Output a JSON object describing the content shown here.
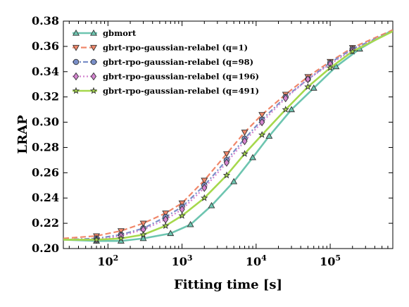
{
  "chart_data": {
    "type": "line",
    "title": "",
    "xlabel": "Fitting time [s]",
    "ylabel": "LRAP",
    "xscale": "log",
    "xlim": [
      25,
      700000
    ],
    "ylim": [
      0.2,
      0.38
    ],
    "yticks": [
      0.2,
      0.22,
      0.24,
      0.26,
      0.28,
      0.3,
      0.32,
      0.34,
      0.36,
      0.38
    ],
    "ytick_labels": [
      "0.20",
      "0.22",
      "0.24",
      "0.26",
      "0.28",
      "0.30",
      "0.32",
      "0.34",
      "0.36",
      "0.38"
    ],
    "xticks": [
      100,
      1000,
      10000,
      100000
    ],
    "xtick_labels": [
      {
        "base": "10",
        "exp": "2"
      },
      {
        "base": "10",
        "exp": "3"
      },
      {
        "base": "10",
        "exp": "4"
      },
      {
        "base": "10",
        "exp": "5"
      }
    ],
    "legend_position": "top-left",
    "grid": false,
    "series": [
      {
        "name": "gbmort",
        "color": "#6dc5b0",
        "dash": "solid",
        "marker": "triangle-up",
        "x": [
          25,
          70,
          150,
          300,
          700,
          1300,
          2500,
          5000,
          9000,
          15000,
          30000,
          60000,
          120000,
          250000,
          700000
        ],
        "y": [
          0.207,
          0.206,
          0.206,
          0.208,
          0.212,
          0.219,
          0.234,
          0.253,
          0.272,
          0.289,
          0.31,
          0.327,
          0.344,
          0.358,
          0.373
        ]
      },
      {
        "name": "gbrt-rpo-gaussian-relabel (q=1)",
        "color": "#f0876a",
        "dash": "dashed",
        "marker": "triangle-down",
        "x": [
          25,
          70,
          150,
          300,
          600,
          1000,
          2000,
          4000,
          7000,
          12000,
          25000,
          50000,
          100000,
          200000,
          700000
        ],
        "y": [
          0.208,
          0.21,
          0.214,
          0.22,
          0.228,
          0.236,
          0.254,
          0.275,
          0.292,
          0.306,
          0.322,
          0.336,
          0.348,
          0.359,
          0.373
        ]
      },
      {
        "name": "gbrt-rpo-gaussian-relabel (q=98)",
        "color": "#7a8fc8",
        "dash": "dashdot",
        "marker": "circle",
        "x": [
          25,
          70,
          150,
          300,
          600,
          1000,
          2000,
          4000,
          7000,
          12000,
          25000,
          50000,
          100000,
          200000,
          700000
        ],
        "y": [
          0.207,
          0.208,
          0.211,
          0.216,
          0.225,
          0.233,
          0.25,
          0.27,
          0.287,
          0.302,
          0.32,
          0.334,
          0.347,
          0.358,
          0.372
        ]
      },
      {
        "name": "gbrt-rpo-gaussian-relabel (q=196)",
        "color": "#d484cf",
        "dash": "dotted",
        "marker": "diamond",
        "x": [
          25,
          70,
          150,
          300,
          600,
          1000,
          2000,
          4000,
          7000,
          12000,
          25000,
          50000,
          100000,
          200000,
          700000
        ],
        "y": [
          0.207,
          0.207,
          0.21,
          0.215,
          0.223,
          0.231,
          0.248,
          0.268,
          0.285,
          0.3,
          0.319,
          0.334,
          0.346,
          0.357,
          0.372
        ]
      },
      {
        "name": "gbrt-rpo-gaussian-relabel (q=491)",
        "color": "#a6d84c",
        "dash": "solid",
        "marker": "star",
        "x": [
          25,
          70,
          150,
          300,
          600,
          1000,
          2000,
          4000,
          7000,
          12000,
          25000,
          50000,
          100000,
          200000,
          700000
        ],
        "y": [
          0.207,
          0.207,
          0.208,
          0.211,
          0.218,
          0.226,
          0.24,
          0.258,
          0.275,
          0.29,
          0.31,
          0.328,
          0.343,
          0.356,
          0.372
        ]
      }
    ]
  }
}
